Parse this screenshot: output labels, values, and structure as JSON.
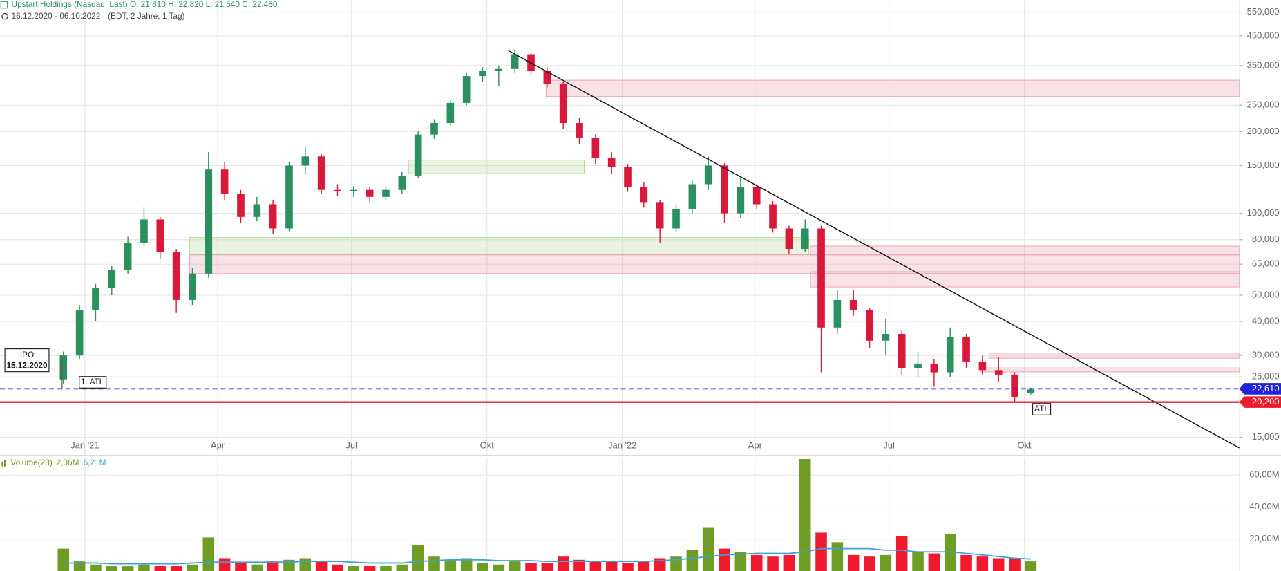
{
  "chart_data": [
    {
      "type": "candlestick",
      "header": "Upstart Holdings (Nasdaq, Last) O: 21,810  H: 22,820  L: 21,540  C: 22,480",
      "period": "16.12.2020 - 06.10.2022",
      "period_note": "(EDT, 2 Jahre, 1 Tag)",
      "annotations": [
        "IPO",
        "15.12.2020",
        "1. ATL",
        "ATL"
      ],
      "log_scale": true,
      "grid": true,
      "up_color": "#2a9060",
      "down_color": "#d8193a",
      "xlim": [
        2020.842,
        2023.148
      ],
      "xticks": [
        {
          "value": 2021,
          "label": "Jan '21"
        },
        {
          "value": 2021.247,
          "label": "Apr"
        },
        {
          "value": 2021.496,
          "label": "Jul"
        },
        {
          "value": 2021.748,
          "label": "Okt"
        },
        {
          "value": 2022,
          "label": "Jan '22"
        },
        {
          "value": 2022.247,
          "label": "Apr"
        },
        {
          "value": 2022.496,
          "label": "Jul"
        },
        {
          "value": 2022.748,
          "label": "Okt"
        }
      ],
      "ylim": [
        12900,
        610000
      ],
      "yticks": [
        {
          "value": 15000,
          "label": "15,000"
        },
        {
          "value": 25000,
          "label": "25,000"
        },
        {
          "value": 30000,
          "label": "30,000"
        },
        {
          "value": 40000,
          "label": "40,000"
        },
        {
          "value": 50000,
          "label": "50,000"
        },
        {
          "value": 65000,
          "label": "65,000"
        },
        {
          "value": 80000,
          "label": "80,000"
        },
        {
          "value": 100000,
          "label": "100,000"
        },
        {
          "value": 150000,
          "label": "150,000"
        },
        {
          "value": 200000,
          "label": "200,000"
        },
        {
          "value": 250000,
          "label": "250,000"
        },
        {
          "value": 350000,
          "label": "350,000"
        },
        {
          "value": 450000,
          "label": "450,000"
        },
        {
          "value": 550000,
          "label": "550,000"
        }
      ],
      "x": [
        2020.96,
        2020.99,
        2021.02,
        2021.05,
        2021.08,
        2021.11,
        2021.14,
        2021.17,
        2021.2,
        2021.23,
        2021.26,
        2021.29,
        2021.32,
        2021.35,
        2021.38,
        2021.41,
        2021.44,
        2021.47,
        2021.5,
        2021.53,
        2021.56,
        2021.59,
        2021.62,
        2021.65,
        2021.68,
        2021.71,
        2021.74,
        2021.77,
        2021.8,
        2021.83,
        2021.86,
        2021.89,
        2021.92,
        2021.95,
        2021.98,
        2022.01,
        2022.04,
        2022.07,
        2022.1,
        2022.13,
        2022.16,
        2022.19,
        2022.22,
        2022.25,
        2022.28,
        2022.31,
        2022.34,
        2022.37,
        2022.4,
        2022.43,
        2022.46,
        2022.49,
        2022.52,
        2022.55,
        2022.58,
        2022.61,
        2022.64,
        2022.67,
        2022.7,
        2022.73,
        2022.76
      ],
      "ohlc": [
        [
          24500,
          31000,
          23500,
          30000
        ],
        [
          30000,
          46000,
          29000,
          44000
        ],
        [
          44000,
          55000,
          40000,
          53000
        ],
        [
          53000,
          64000,
          50000,
          62000
        ],
        [
          62000,
          82000,
          60000,
          78000
        ],
        [
          78000,
          105000,
          75000,
          95000
        ],
        [
          95000,
          97000,
          68000,
          72000
        ],
        [
          72000,
          74000,
          43000,
          48000
        ],
        [
          48000,
          63000,
          46000,
          60000
        ],
        [
          60000,
          168000,
          58000,
          145000
        ],
        [
          145000,
          155000,
          112000,
          118000
        ],
        [
          118000,
          122000,
          92000,
          97000
        ],
        [
          97000,
          115000,
          94000,
          108000
        ],
        [
          108000,
          112000,
          84000,
          88000
        ],
        [
          88000,
          155000,
          86000,
          150000
        ],
        [
          150000,
          175000,
          140000,
          162000
        ],
        [
          162000,
          165000,
          118000,
          122000
        ],
        [
          122000,
          128000,
          116000,
          121000
        ],
        [
          121000,
          126000,
          115000,
          122000
        ],
        [
          122000,
          125000,
          110000,
          115000
        ],
        [
          115000,
          126000,
          112000,
          122000
        ],
        [
          122000,
          142000,
          118000,
          137000
        ],
        [
          137000,
          200000,
          135000,
          195000
        ],
        [
          195000,
          222000,
          188000,
          215000
        ],
        [
          215000,
          262000,
          210000,
          255000
        ],
        [
          255000,
          330000,
          250000,
          320000
        ],
        [
          320000,
          345000,
          305000,
          335000
        ],
        [
          335000,
          350000,
          295000,
          340000
        ],
        [
          340000,
          401000,
          330000,
          385000
        ],
        [
          385000,
          390000,
          325000,
          335000
        ],
        [
          335000,
          345000,
          290000,
          300000
        ],
        [
          300000,
          305000,
          205000,
          215000
        ],
        [
          215000,
          225000,
          180000,
          190000
        ],
        [
          190000,
          195000,
          152000,
          160000
        ],
        [
          160000,
          168000,
          140000,
          148000
        ],
        [
          148000,
          152000,
          120000,
          125000
        ],
        [
          125000,
          130000,
          105000,
          110000
        ],
        [
          110000,
          112000,
          78000,
          88000
        ],
        [
          88000,
          108000,
          85000,
          104000
        ],
        [
          104000,
          132000,
          100000,
          128000
        ],
        [
          128000,
          162000,
          122000,
          150000
        ],
        [
          150000,
          153000,
          92000,
          100000
        ],
        [
          100000,
          135000,
          96000,
          125000
        ],
        [
          125000,
          128000,
          104000,
          108000
        ],
        [
          108000,
          111000,
          85000,
          88000
        ],
        [
          88000,
          90000,
          71000,
          74000
        ],
        [
          74000,
          95000,
          72000,
          88000
        ],
        [
          88000,
          90000,
          26000,
          38000
        ],
        [
          38000,
          52000,
          36000,
          48000
        ],
        [
          48000,
          52000,
          42000,
          44000
        ],
        [
          44000,
          45000,
          32000,
          34000
        ],
        [
          34000,
          41000,
          30000,
          36000
        ],
        [
          36000,
          37000,
          25500,
          27000
        ],
        [
          27000,
          31000,
          25000,
          28000
        ],
        [
          28000,
          29000,
          23000,
          26000
        ],
        [
          26000,
          38000,
          25000,
          35000
        ],
        [
          35000,
          36000,
          27000,
          28500
        ],
        [
          28500,
          30000,
          25500,
          26500
        ],
        [
          26500,
          29500,
          24000,
          25500
        ],
        [
          25500,
          26000,
          20200,
          21000
        ],
        [
          21810,
          22820,
          21540,
          22480
        ]
      ],
      "zones": [
        {
          "color": "#e8a0b0",
          "x": [
            2021.858,
            2023.148
          ],
          "y": [
            269000,
            309000
          ]
        },
        {
          "color": "#b8d890",
          "x": [
            2021.602,
            2021.929
          ],
          "y": [
            140000,
            157000
          ]
        },
        {
          "color": "#b8d890",
          "x": [
            2021.195,
            2022.347
          ],
          "y": [
            70600,
            81500
          ]
        },
        {
          "color": "#e8a0b0",
          "x": [
            2021.195,
            2023.148
          ],
          "y": [
            60000,
            70300
          ]
        },
        {
          "color": "#e8a0b0",
          "x": [
            2022.35,
            2023.148
          ],
          "y": [
            70300,
            75800
          ]
        },
        {
          "color": "#e8a0b0",
          "x": [
            2022.35,
            2023.148
          ],
          "y": [
            53600,
            61000
          ]
        },
        {
          "color": "#e8a0b0",
          "x": [
            2022.682,
            2023.148
          ],
          "y": [
            29300,
            30600
          ]
        },
        {
          "color": "#e8a0b0",
          "x": [
            2022.666,
            2023.148
          ],
          "y": [
            26100,
            27000
          ]
        }
      ],
      "trendline": {
        "color": "#111111",
        "x": [
          2021.788,
          2023.148
        ],
        "y": [
          397000,
          13700
        ]
      },
      "levels": [
        {
          "value": 22610,
          "label": "22,610",
          "color": "#2323d8",
          "dashed": true
        },
        {
          "value": 20200,
          "label": "20,200",
          "color": "#ea1c2c",
          "dashed": false
        }
      ]
    },
    {
      "type": "bar",
      "legend": [
        "Volume(28)",
        "2,06M",
        "6,21M"
      ],
      "up_color": "#6e9c24",
      "down_color": "#ee1a2e",
      "ma_color": "#3ea0d8",
      "ylim": [
        0,
        71
      ],
      "yticks": [
        {
          "value": 20,
          "label": "20,00M"
        },
        {
          "value": 40,
          "label": "40,00M"
        },
        {
          "value": 60,
          "label": "60,00M"
        }
      ],
      "values": [
        14,
        6,
        4,
        3,
        3,
        4,
        3,
        3,
        4,
        21,
        8,
        5,
        4,
        6,
        7,
        8,
        6,
        4,
        3,
        3,
        3,
        4,
        16,
        9,
        7,
        8,
        5,
        4,
        6,
        5,
        5,
        9,
        7,
        6,
        6,
        5,
        6,
        8,
        9,
        13,
        27,
        14,
        12,
        10,
        9,
        10,
        70,
        24,
        18,
        10,
        9,
        10,
        22,
        12,
        11,
        23,
        10,
        9,
        8,
        8,
        6
      ],
      "ma": [
        5,
        5,
        5,
        4.5,
        4.5,
        4.5,
        4.5,
        4.5,
        5,
        5.5,
        5.5,
        5.5,
        5.5,
        5.5,
        5.5,
        6,
        6,
        6,
        5.5,
        5,
        5,
        5,
        6,
        6.5,
        7,
        7,
        7,
        6.5,
        6.5,
        6.5,
        6,
        6,
        6,
        6,
        6,
        6,
        6,
        6.5,
        7,
        8,
        9,
        10,
        10.5,
        11,
        11,
        11,
        12,
        14,
        14,
        14,
        14,
        13,
        13,
        12,
        12,
        12,
        11,
        10,
        9,
        8,
        7.5
      ]
    }
  ]
}
